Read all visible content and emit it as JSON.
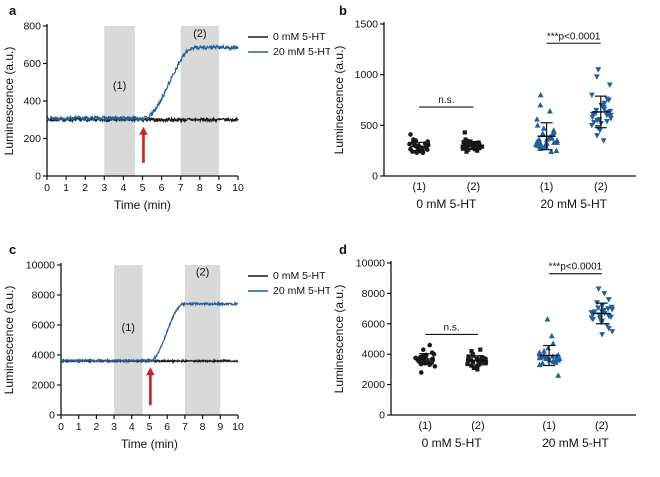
{
  "colors": {
    "black": "#1a1a1a",
    "blue": "#1f5f9f",
    "shade": "#d9d9d9",
    "red": "#cf2020",
    "axis": "#111111"
  },
  "chart_data": [
    {
      "panel": "a",
      "type": "line",
      "title": "",
      "xlabel": "Time (min)",
      "ylabel": "Luminescence (a.u.)",
      "xlim": [
        0,
        10
      ],
      "ylim": [
        0,
        800
      ],
      "xticks": [
        0,
        1,
        2,
        3,
        4,
        5,
        6,
        7,
        8,
        9,
        10
      ],
      "yticks": [
        0,
        200,
        400,
        600,
        800
      ],
      "grid": false,
      "shaded": [
        {
          "label": "(1)",
          "x0": 3.0,
          "x1": 4.6,
          "label_x": 3.8,
          "label_y": 465
        },
        {
          "label": "(2)",
          "x0": 7.0,
          "x1": 9.0,
          "label_x": 8.0,
          "label_y": 742
        }
      ],
      "arrow": {
        "x": 5.05,
        "y_tail": 70,
        "y_head": 252
      },
      "legend": [
        {
          "label": "0 mM 5-HT",
          "color": "black"
        },
        {
          "label": "20 mM 5-HT",
          "color": "blue"
        }
      ],
      "series": [
        {
          "name": "0 mM 5-HT",
          "color": "black",
          "baseline": 300,
          "plateau": 300,
          "rise_start": 5.0,
          "rise_end": 8.0,
          "noise": 9,
          "seed": 7
        },
        {
          "name": "20 mM 5-HT",
          "color": "blue",
          "baseline": 308,
          "plateau": 685,
          "rise_start": 5.1,
          "rise_end": 7.7,
          "noise": 11,
          "seed": 13
        }
      ]
    },
    {
      "panel": "b",
      "type": "scatter",
      "title": "",
      "xlabel": "",
      "ylabel": "Luminescence (a.u.)",
      "ylim": [
        0,
        1500
      ],
      "yticks": [
        0,
        500,
        1000,
        1500
      ],
      "grid": false,
      "xlim": [
        0.35,
        5.0
      ],
      "group_x": [
        1.0,
        2.0,
        3.35,
        4.35
      ],
      "groups": [
        {
          "tick": "(1)",
          "condition": "0 mM 5-HT",
          "marker": "circle",
          "color": "black",
          "seed": 21,
          "values": [
            250,
            270,
            310,
            230,
            290,
            340,
            260,
            300,
            280,
            320,
            240,
            350,
            270,
            295,
            265,
            305,
            330,
            245,
            285,
            315,
            255,
            360,
            275,
            300,
            410,
            230,
            290,
            320,
            260,
            280
          ]
        },
        {
          "tick": "(2)",
          "condition": "0 mM 5-HT",
          "marker": "square",
          "color": "black",
          "seed": 22,
          "values": [
            280,
            300,
            320,
            260,
            340,
            290,
            310,
            250,
            330,
            270,
            300,
            360,
            240,
            315,
            285,
            295,
            345,
            265,
            305,
            325,
            275,
            430,
            255,
            310,
            290,
            335,
            300,
            280,
            320,
            260
          ]
        },
        {
          "tick": "(1)",
          "condition": "20 mM 5-HT",
          "marker": "triangle-up",
          "color": "blue",
          "seed": 23,
          "values": [
            300,
            340,
            380,
            280,
            420,
            320,
            360,
            250,
            450,
            310,
            390,
            270,
            500,
            330,
            430,
            290,
            370,
            560,
            310,
            640,
            350,
            700,
            330,
            800,
            290,
            410,
            360,
            240,
            470,
            320
          ]
        },
        {
          "tick": "(2)",
          "condition": "20 mM 5-HT",
          "marker": "triangle-down",
          "color": "blue",
          "seed": 24,
          "values": [
            550,
            600,
            650,
            500,
            700,
            580,
            620,
            450,
            750,
            540,
            680,
            400,
            800,
            560,
            720,
            480,
            640,
            900,
            520,
            980,
            600,
            1050,
            570,
            350,
            660,
            610,
            530,
            760,
            590,
            630
          ]
        }
      ],
      "conditions": [
        {
          "label": "0 mM 5-HT",
          "groups": [
            0,
            1
          ]
        },
        {
          "label": "20 mM 5-HT",
          "groups": [
            2,
            3
          ]
        }
      ],
      "annotations": [
        {
          "text": "n.s.",
          "g0": 0,
          "g1": 1,
          "y": 680
        },
        {
          "text": "***p<0.0001",
          "g0": 2,
          "g1": 3,
          "y": 1310
        }
      ]
    },
    {
      "panel": "c",
      "type": "line",
      "title": "",
      "xlabel": "Time (min)",
      "ylabel": "Luminescence (a.u.)",
      "xlim": [
        0,
        10
      ],
      "ylim": [
        0,
        10000
      ],
      "xticks": [
        0,
        1,
        2,
        3,
        4,
        5,
        6,
        7,
        8,
        9,
        10
      ],
      "yticks": [
        0,
        2000,
        4000,
        6000,
        8000,
        10000
      ],
      "grid": false,
      "shaded": [
        {
          "label": "(1)",
          "x0": 3.0,
          "x1": 4.6,
          "label_x": 3.8,
          "label_y": 5600
        },
        {
          "label": "(2)",
          "x0": 7.0,
          "x1": 9.0,
          "label_x": 8.0,
          "label_y": 9300
        }
      ],
      "arrow": {
        "x": 5.05,
        "y_tail": 650,
        "y_head": 3050
      },
      "legend": [
        {
          "label": "0 mM 5-HT",
          "color": "black"
        },
        {
          "label": "20 mM 5-HT",
          "color": "blue"
        }
      ],
      "series": [
        {
          "name": "0 mM 5-HT",
          "color": "black",
          "baseline": 3600,
          "plateau": 3600,
          "rise_start": 5.0,
          "rise_end": 8.0,
          "noise": 60,
          "seed": 31
        },
        {
          "name": "20 mM 5-HT",
          "color": "blue",
          "baseline": 3620,
          "plateau": 7400,
          "rise_start": 5.05,
          "rise_end": 6.9,
          "noise": 70,
          "seed": 37
        }
      ]
    },
    {
      "panel": "d",
      "type": "scatter",
      "title": "",
      "xlabel": "",
      "ylabel": "Luminescence (a.u.)",
      "ylim": [
        0,
        10000
      ],
      "yticks": [
        0,
        2000,
        4000,
        6000,
        8000,
        10000
      ],
      "grid": false,
      "xlim": [
        0.35,
        5.0
      ],
      "group_x": [
        1.0,
        2.0,
        3.35,
        4.35
      ],
      "groups": [
        {
          "tick": "(1)",
          "condition": "0 mM 5-HT",
          "marker": "circle",
          "color": "black",
          "seed": 41,
          "values": [
            3600,
            3800,
            3500,
            3900,
            3700,
            3400,
            4000,
            3650,
            3750,
            3300,
            4100,
            3550,
            3850,
            3200,
            4300,
            3700,
            3600,
            4600,
            3450,
            2800,
            3800,
            3950,
            3500,
            3700,
            3600,
            3900,
            3350,
            3750
          ]
        },
        {
          "tick": "(2)",
          "condition": "0 mM 5-HT",
          "marker": "square",
          "color": "black",
          "seed": 42,
          "values": [
            3500,
            3700,
            3400,
            3800,
            3600,
            3300,
            3900,
            3550,
            3650,
            3200,
            4000,
            3450,
            3750,
            3100,
            4200,
            3600,
            3500,
            4300,
            3350,
            3000,
            3700,
            3850,
            3400,
            3600,
            3500,
            3800,
            3250,
            3650
          ]
        },
        {
          "tick": "(1)",
          "condition": "20 mM 5-HT",
          "marker": "triangle-up",
          "color": "blue",
          "seed": 43,
          "values": [
            3700,
            3900,
            3600,
            4000,
            3800,
            3500,
            4100,
            3750,
            3850,
            3400,
            4200,
            3650,
            3950,
            3300,
            4400,
            3800,
            3700,
            4700,
            3550,
            2600,
            3900,
            4050,
            3600,
            3800,
            5200,
            6300,
            3450,
            3850
          ]
        },
        {
          "tick": "(2)",
          "condition": "20 mM 5-HT",
          "marker": "triangle-down",
          "color": "blue",
          "seed": 44,
          "values": [
            6500,
            6800,
            6300,
            7000,
            6700,
            6100,
            7200,
            6600,
            6900,
            5900,
            7400,
            6400,
            7100,
            5700,
            7600,
            6750,
            6550,
            8000,
            6200,
            5300,
            6850,
            7050,
            6450,
            6650,
            8300,
            5500,
            6350,
            6950
          ]
        }
      ],
      "conditions": [
        {
          "label": "0 mM 5-HT",
          "groups": [
            0,
            1
          ]
        },
        {
          "label": "20 mM 5-HT",
          "groups": [
            2,
            3
          ]
        }
      ],
      "annotations": [
        {
          "text": "n.s.",
          "g0": 0,
          "g1": 1,
          "y": 5300
        },
        {
          "text": "***p<0.0001",
          "g0": 2,
          "g1": 3,
          "y": 9300
        }
      ]
    }
  ]
}
